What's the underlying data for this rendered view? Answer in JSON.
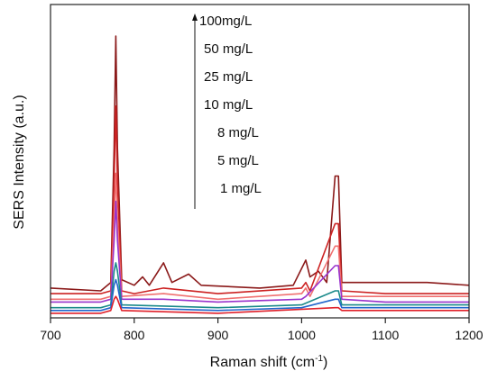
{
  "chart_data": {
    "type": "line",
    "xlabel_base": "Raman shift (cm",
    "xlabel_sup": "-1",
    "xlabel_tail": ")",
    "ylabel": "SERS Intensity (a.u.)",
    "xlim": [
      700,
      1200
    ],
    "x_ticks": [
      700,
      800,
      900,
      1000,
      1100,
      1200
    ],
    "x_tick_labels": [
      "700",
      "800",
      "900",
      "1000",
      "1100",
      "1200"
    ],
    "y_scale": "arbitrary units",
    "ylim": [
      0,
      100
    ],
    "grid": false,
    "legend_placement": "top-center",
    "legend": [
      {
        "label": "100mg/L",
        "color": "#8b1a1a"
      },
      {
        "label": "50 mg/L",
        "color": "#cc2222"
      },
      {
        "label": "25 mg/L",
        "color": "#f07070"
      },
      {
        "label": "10 mg/L",
        "color": "#9933cc"
      },
      {
        "label": "8 mg/L",
        "color": "#1a8a8a"
      },
      {
        "label": "5 mg/L",
        "color": "#2266cc"
      },
      {
        "label": "1 mg/L",
        "color": "#e0202a"
      }
    ],
    "legend_arrow": "increasing concentration upward",
    "series": [
      {
        "name": "100mg/L",
        "color": "#8b1a1a",
        "points": [
          [
            700,
            10
          ],
          [
            760,
            9
          ],
          [
            772,
            12
          ],
          [
            776,
            60
          ],
          [
            778,
            100
          ],
          [
            780,
            60
          ],
          [
            785,
            13
          ],
          [
            800,
            11
          ],
          [
            810,
            14
          ],
          [
            818,
            11
          ],
          [
            835,
            19
          ],
          [
            845,
            12
          ],
          [
            865,
            15
          ],
          [
            880,
            11
          ],
          [
            950,
            10
          ],
          [
            990,
            11
          ],
          [
            1000,
            17
          ],
          [
            1005,
            20
          ],
          [
            1010,
            14
          ],
          [
            1020,
            16
          ],
          [
            1030,
            12
          ],
          [
            1040,
            50
          ],
          [
            1044,
            50
          ],
          [
            1048,
            12
          ],
          [
            1100,
            12
          ],
          [
            1150,
            12
          ],
          [
            1200,
            11
          ]
        ]
      },
      {
        "name": "50 mg/L",
        "color": "#cc2222",
        "points": [
          [
            700,
            8
          ],
          [
            760,
            8
          ],
          [
            772,
            9
          ],
          [
            776,
            48
          ],
          [
            778,
            75
          ],
          [
            780,
            48
          ],
          [
            785,
            9
          ],
          [
            800,
            8
          ],
          [
            835,
            10
          ],
          [
            900,
            8
          ],
          [
            1000,
            10
          ],
          [
            1005,
            12
          ],
          [
            1010,
            9
          ],
          [
            1040,
            33
          ],
          [
            1044,
            33
          ],
          [
            1048,
            9
          ],
          [
            1100,
            8
          ],
          [
            1200,
            8
          ]
        ]
      },
      {
        "name": "25 mg/L",
        "color": "#f07070",
        "points": [
          [
            700,
            6
          ],
          [
            760,
            6
          ],
          [
            772,
            7
          ],
          [
            776,
            35
          ],
          [
            778,
            51
          ],
          [
            780,
            35
          ],
          [
            785,
            7
          ],
          [
            835,
            8
          ],
          [
            900,
            6
          ],
          [
            1000,
            8
          ],
          [
            1005,
            10
          ],
          [
            1010,
            7
          ],
          [
            1040,
            25
          ],
          [
            1044,
            25
          ],
          [
            1048,
            7
          ],
          [
            1100,
            7
          ],
          [
            1200,
            7
          ]
        ]
      },
      {
        "name": "10 mg/L",
        "color": "#9933cc",
        "points": [
          [
            700,
            5
          ],
          [
            760,
            5
          ],
          [
            772,
            6
          ],
          [
            776,
            27
          ],
          [
            778,
            41
          ],
          [
            780,
            27
          ],
          [
            785,
            6
          ],
          [
            835,
            6
          ],
          [
            900,
            5
          ],
          [
            1000,
            6
          ],
          [
            1005,
            7
          ],
          [
            1040,
            18
          ],
          [
            1044,
            18
          ],
          [
            1048,
            6
          ],
          [
            1100,
            5
          ],
          [
            1200,
            5
          ]
        ]
      },
      {
        "name": "8 mg/L",
        "color": "#1a8a8a",
        "points": [
          [
            700,
            3
          ],
          [
            760,
            3
          ],
          [
            772,
            4
          ],
          [
            776,
            16
          ],
          [
            778,
            19
          ],
          [
            780,
            16
          ],
          [
            785,
            4
          ],
          [
            900,
            3
          ],
          [
            1000,
            4
          ],
          [
            1040,
            9
          ],
          [
            1044,
            9
          ],
          [
            1048,
            4
          ],
          [
            1100,
            4
          ],
          [
            1200,
            4
          ]
        ]
      },
      {
        "name": "5 mg/L",
        "color": "#2266cc",
        "points": [
          [
            700,
            2
          ],
          [
            760,
            2
          ],
          [
            772,
            3
          ],
          [
            776,
            11
          ],
          [
            778,
            13
          ],
          [
            780,
            11
          ],
          [
            785,
            3
          ],
          [
            900,
            2
          ],
          [
            1000,
            3
          ],
          [
            1040,
            6
          ],
          [
            1044,
            6
          ],
          [
            1048,
            3
          ],
          [
            1100,
            3
          ],
          [
            1200,
            3
          ]
        ]
      },
      {
        "name": "1 mg/L",
        "color": "#e0202a",
        "points": [
          [
            700,
            1
          ],
          [
            760,
            1
          ],
          [
            772,
            2
          ],
          [
            776,
            6
          ],
          [
            778,
            7
          ],
          [
            780,
            6
          ],
          [
            785,
            2
          ],
          [
            900,
            1
          ],
          [
            1040,
            3
          ],
          [
            1044,
            3
          ],
          [
            1048,
            2
          ],
          [
            1200,
            2
          ]
        ]
      }
    ]
  }
}
